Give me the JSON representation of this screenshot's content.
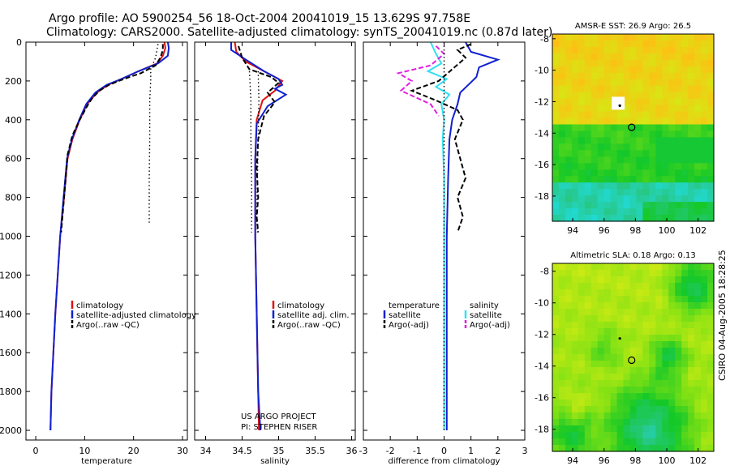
{
  "title": {
    "line1": "Argo profile: AO 5900254_56 18-Oct-2004 20041019_15 13.629S 97.758E",
    "line2": "Climatology: CARS2000. Satellite-adjusted climatology: synTS_20041019.nc (0.87d later)"
  },
  "side_label": "CSIRO 04-Aug-2005 18:28:25",
  "colors": {
    "red": "#e01010",
    "blue": "#1020d0",
    "black": "#000000",
    "cyan": "#30e0f0",
    "magenta": "#e020e0"
  },
  "chart_data": [
    {
      "id": "temperature",
      "type": "line",
      "xlabel": "temperature",
      "xlim": [
        -2,
        31
      ],
      "ylim": [
        0,
        2050
      ],
      "yticks": [
        "0",
        "200",
        "400",
        "600",
        "800",
        "1000",
        "1200",
        "1400",
        "1600",
        "1800",
        "2000"
      ],
      "xticks": [
        "0",
        "10",
        "20",
        "30"
      ],
      "legend": [
        "climatology",
        "satellite-adjusted climatology",
        "Argo(..raw -QC)"
      ],
      "series": [
        {
          "name": "climatology",
          "color": "red",
          "dash": "solid",
          "x": [
            26.3,
            26.5,
            26,
            24.8,
            21,
            17.5,
            14.8,
            12.5,
            10.5,
            9,
            7.5,
            6.5,
            5.8,
            5,
            4.5,
            4,
            3.6,
            3.2,
            3
          ],
          "y": [
            0,
            30,
            70,
            110,
            150,
            190,
            220,
            260,
            320,
            400,
            500,
            600,
            800,
            1000,
            1200,
            1400,
            1600,
            1800,
            2000
          ]
        },
        {
          "name": "satellite-adjusted climatology",
          "color": "blue",
          "dash": "solid",
          "x": [
            27,
            27.2,
            27,
            25,
            21,
            17.5,
            14.5,
            12.2,
            10.3,
            8.9,
            7.4,
            6.4,
            5.7,
            5,
            4.5,
            4,
            3.6,
            3.2,
            3
          ],
          "y": [
            0,
            30,
            70,
            110,
            150,
            190,
            220,
            260,
            320,
            400,
            500,
            600,
            800,
            1000,
            1200,
            1400,
            1600,
            1800,
            2000
          ]
        },
        {
          "name": "Argo(..raw -QC)",
          "color": "black",
          "dash": "dashed",
          "x": [
            26,
            26,
            25.5,
            24.5,
            21.5,
            18,
            15,
            13,
            11.5,
            10.5,
            9,
            7.5,
            6.5,
            5.8,
            5.2
          ],
          "y": [
            10,
            40,
            80,
            120,
            160,
            190,
            220,
            250,
            290,
            330,
            400,
            480,
            580,
            800,
            980
          ]
        },
        {
          "name": "Argo dotted",
          "color": "black",
          "dash": "dotted",
          "x": [
            25,
            24.5,
            23.5,
            23.5,
            23.3,
            23.3,
            23.2,
            23.2
          ],
          "y": [
            10,
            80,
            140,
            200,
            300,
            500,
            700,
            930
          ]
        }
      ]
    },
    {
      "id": "salinity",
      "type": "line",
      "xlabel": "salinity",
      "xlim": [
        33.85,
        36.05
      ],
      "ylim": [
        0,
        2050
      ],
      "xticks": [
        "34",
        "34.5",
        "35",
        "35.5",
        "36"
      ],
      "legend": [
        "climatology",
        "satellite adj. clim.",
        "Argo(..raw -QC)"
      ],
      "annotation": [
        "US ARGO PROJECT",
        "PI: STEPHEN RISER"
      ],
      "series": [
        {
          "name": "climatology",
          "color": "red",
          "dash": "solid",
          "x": [
            34.4,
            34.42,
            34.55,
            34.8,
            35.05,
            34.95,
            34.78,
            34.7,
            34.68,
            34.68,
            34.7,
            34.72,
            34.73
          ],
          "y": [
            0,
            50,
            100,
            150,
            200,
            250,
            300,
            400,
            600,
            1000,
            1400,
            1800,
            2000
          ]
        },
        {
          "name": "satellite adj. clim.",
          "color": "blue",
          "dash": "solid",
          "x": [
            34.35,
            34.35,
            34.55,
            34.8,
            35,
            35.05,
            34.95,
            35.1,
            34.85,
            34.7,
            34.68,
            34.68,
            34.7,
            34.72,
            34.75
          ],
          "y": [
            0,
            40,
            90,
            150,
            190,
            220,
            240,
            270,
            330,
            420,
            600,
            1000,
            1400,
            1800,
            2000
          ]
        },
        {
          "name": "Argo(..raw -QC)",
          "color": "black",
          "dash": "dashed",
          "x": [
            34.45,
            34.5,
            34.6,
            34.9,
            35,
            34.85,
            34.95,
            34.8,
            34.72,
            34.7,
            34.72,
            34.7,
            34.72
          ],
          "y": [
            20,
            80,
            140,
            180,
            210,
            260,
            310,
            380,
            500,
            650,
            800,
            900,
            980
          ]
        },
        {
          "name": "Argo dotted",
          "color": "black",
          "dash": "dotted",
          "x": [
            34.6,
            34.62,
            34.62,
            34.63,
            34.63,
            34.63
          ],
          "y": [
            150,
            300,
            500,
            700,
            900,
            980
          ]
        },
        {
          "name": "Argo dotted 2",
          "color": "black",
          "dash": "dotted",
          "x": [
            34.72,
            34.73,
            34.72,
            34.71,
            34.7,
            34.71
          ],
          "y": [
            150,
            300,
            500,
            700,
            900,
            980
          ]
        }
      ]
    },
    {
      "id": "difference",
      "type": "line",
      "xlabel": "difference from climatology",
      "xlim": [
        -3,
        3
      ],
      "ylim": [
        0,
        2050
      ],
      "xticks": [
        "-3",
        "-2",
        "-1",
        "0",
        "1",
        "2",
        "3"
      ],
      "legend_left": [
        "temperature",
        "satellite",
        "Argo(-adj)"
      ],
      "legend_right": [
        "salinity",
        "satellite",
        "Argo(-adj)"
      ],
      "series": [
        {
          "name": "temperature satellite",
          "color": "blue",
          "dash": "solid",
          "x": [
            0.8,
            1,
            2,
            1.3,
            1.2,
            0.9,
            0.6,
            0.5,
            0.3,
            0.2,
            0.15,
            0.1,
            0.1,
            0.1
          ],
          "y": [
            0,
            50,
            90,
            130,
            180,
            220,
            260,
            320,
            400,
            500,
            700,
            1000,
            1500,
            2000
          ]
        },
        {
          "name": "salinity satellite",
          "color": "cyan",
          "dash": "solid",
          "x": [
            -0.5,
            -0.3,
            -0.1,
            -0.6,
            0.1,
            -0.3,
            0.2,
            -0.1,
            0,
            -0.05,
            0,
            0,
            0,
            0
          ],
          "y": [
            0,
            60,
            110,
            150,
            190,
            230,
            270,
            320,
            400,
            500,
            700,
            1000,
            1500,
            2000
          ]
        },
        {
          "name": "temperature Argo(-adj)",
          "color": "black",
          "dash": "dashed",
          "x": [
            1,
            0.5,
            0.8,
            0.3,
            -0.2,
            -1.2,
            -0.3,
            0.5,
            0.7,
            0.4,
            0.6,
            0.8,
            0.5,
            0.7,
            0.5
          ],
          "y": [
            10,
            40,
            80,
            140,
            200,
            250,
            300,
            350,
            400,
            500,
            600,
            700,
            800,
            900,
            980
          ]
        },
        {
          "name": "salinity Argo(-adj)",
          "color": "magenta",
          "dash": "dashed",
          "x": [
            -0.3,
            0,
            -0.5,
            -1.7,
            -1.2,
            -1.6,
            -0.5,
            -0.2
          ],
          "y": [
            20,
            60,
            120,
            160,
            200,
            250,
            320,
            380
          ]
        },
        {
          "name": "zero line",
          "color": "black",
          "dash": "dotted",
          "x": [
            0,
            0
          ],
          "y": [
            0,
            2000
          ]
        }
      ]
    },
    {
      "id": "sst_map",
      "type": "heatmap",
      "title": "AMSR-E SST: 26.9 Argo: 26.5",
      "xlim": [
        92.7,
        103
      ],
      "ylim": [
        -19.6,
        -7.7
      ],
      "xticks": [
        "94",
        "96",
        "98",
        "100",
        "102"
      ],
      "yticks": [
        "-8",
        "-10",
        "-12",
        "-14",
        "-16",
        "-18"
      ],
      "profile_point": [
        97.76,
        -13.63
      ],
      "marker_point": [
        96.9,
        -12.1
      ]
    },
    {
      "id": "sla_map",
      "type": "heatmap",
      "title": "Altimetric SLA: 0.18 Argo: 0.13",
      "xlim": [
        92.7,
        103
      ],
      "ylim": [
        -19.4,
        -7.5
      ],
      "xticks": [
        "94",
        "96",
        "98",
        "100",
        "102"
      ],
      "yticks": [
        "-8",
        "-10",
        "-12",
        "-14",
        "-16",
        "-18"
      ],
      "profile_point": [
        97.76,
        -13.63
      ],
      "marker_point": [
        96.9,
        -12.1
      ]
    }
  ]
}
